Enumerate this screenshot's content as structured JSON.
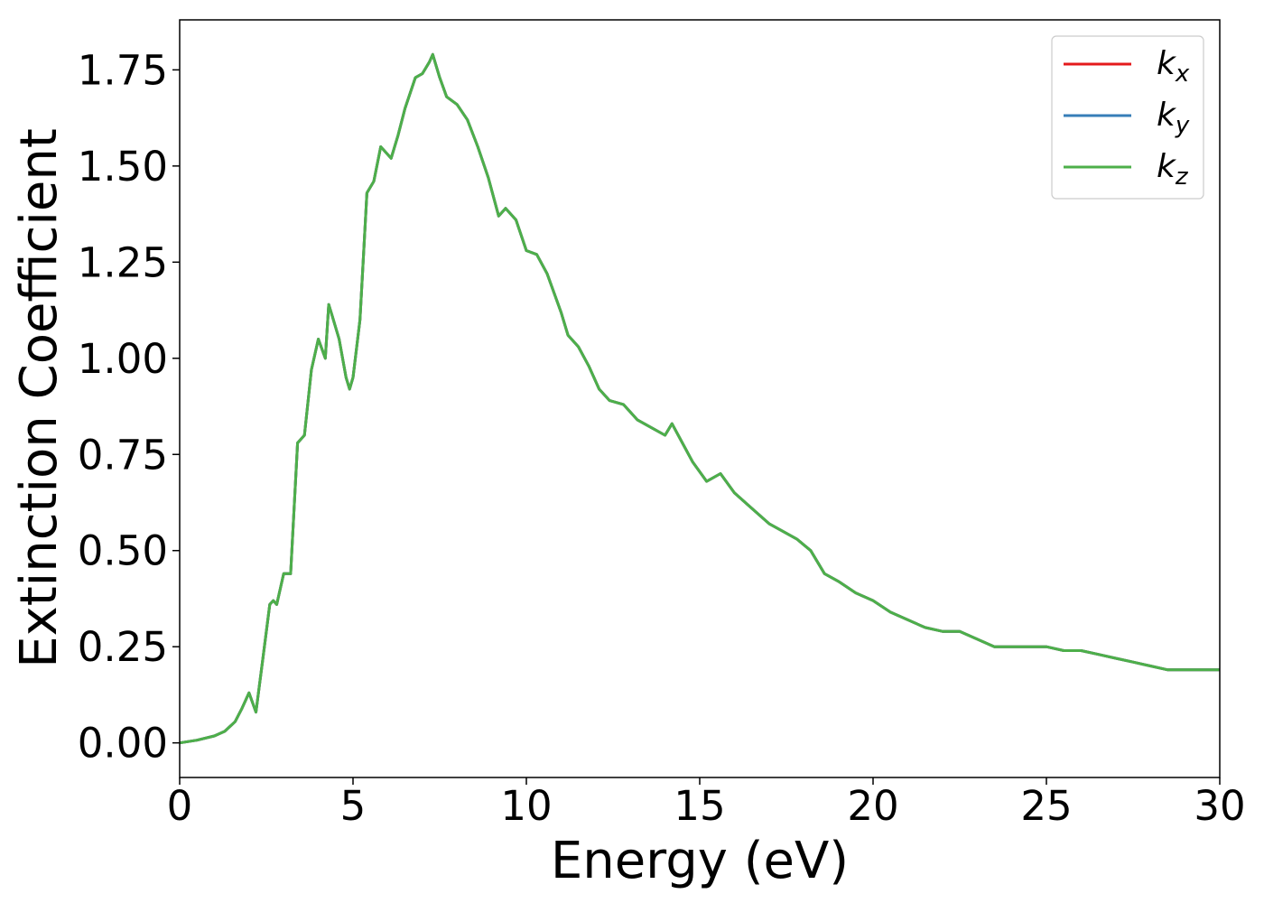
{
  "chart_data": {
    "type": "line",
    "title": "",
    "xlabel": "Energy (eV)",
    "ylabel": "Extinction Coefficient",
    "xlim": [
      0,
      30
    ],
    "ylim": [
      -0.09,
      1.88
    ],
    "x_ticks": [
      0,
      5,
      10,
      15,
      20,
      25,
      30
    ],
    "x_tick_labels": [
      "0",
      "5",
      "10",
      "15",
      "20",
      "25",
      "30"
    ],
    "y_ticks": [
      0.0,
      0.25,
      0.5,
      0.75,
      1.0,
      1.25,
      1.5,
      1.75
    ],
    "y_tick_labels": [
      "0.00",
      "0.25",
      "0.50",
      "0.75",
      "1.00",
      "1.25",
      "1.50",
      "1.75"
    ],
    "grid": false,
    "legend_position": "top-right",
    "series": [
      {
        "name": "k",
        "subscript": "x",
        "color": "#e41a1c",
        "x": [
          0,
          0.5,
          1.0,
          1.3,
          1.6,
          1.8,
          2.0,
          2.2,
          2.4,
          2.6,
          2.7,
          2.8,
          3.0,
          3.2,
          3.4,
          3.5,
          3.6,
          3.8,
          4.0,
          4.2,
          4.3,
          4.4,
          4.6,
          4.8,
          4.9,
          5.0,
          5.2,
          5.4,
          5.6,
          5.8,
          6.1,
          6.3,
          6.5,
          6.8,
          7.0,
          7.2,
          7.3,
          7.5,
          7.7,
          8.0,
          8.3,
          8.6,
          8.9,
          9.2,
          9.4,
          9.7,
          10.0,
          10.3,
          10.6,
          11.0,
          11.2,
          11.5,
          11.8,
          12.1,
          12.4,
          12.8,
          13.2,
          13.6,
          14.0,
          14.2,
          14.5,
          14.8,
          15.2,
          15.6,
          16.0,
          16.5,
          17.0,
          17.4,
          17.8,
          18.2,
          18.6,
          19.0,
          19.5,
          20.0,
          20.5,
          21.0,
          21.5,
          22.0,
          22.5,
          23.0,
          23.5,
          24.0,
          24.5,
          25.0,
          25.5,
          26.0,
          26.5,
          27.0,
          27.5,
          28.0,
          28.5,
          29.0,
          29.5,
          30.0
        ],
        "y": [
          0.0,
          0.007,
          0.018,
          0.03,
          0.055,
          0.09,
          0.13,
          0.08,
          0.22,
          0.36,
          0.37,
          0.36,
          0.44,
          0.44,
          0.78,
          0.79,
          0.8,
          0.97,
          1.05,
          1.0,
          1.14,
          1.11,
          1.05,
          0.95,
          0.92,
          0.95,
          1.1,
          1.43,
          1.46,
          1.55,
          1.52,
          1.58,
          1.65,
          1.73,
          1.74,
          1.77,
          1.79,
          1.73,
          1.68,
          1.66,
          1.62,
          1.55,
          1.47,
          1.37,
          1.39,
          1.36,
          1.28,
          1.27,
          1.22,
          1.12,
          1.06,
          1.03,
          0.98,
          0.92,
          0.89,
          0.88,
          0.84,
          0.82,
          0.8,
          0.83,
          0.78,
          0.73,
          0.68,
          0.7,
          0.65,
          0.61,
          0.57,
          0.55,
          0.53,
          0.5,
          0.44,
          0.42,
          0.39,
          0.37,
          0.34,
          0.32,
          0.3,
          0.29,
          0.29,
          0.27,
          0.25,
          0.25,
          0.25,
          0.25,
          0.24,
          0.24,
          0.23,
          0.22,
          0.21,
          0.2,
          0.19,
          0.19,
          0.19,
          0.19
        ]
      },
      {
        "name": "k",
        "subscript": "y",
        "color": "#377eb8",
        "x": [
          0,
          0.5,
          1.0,
          1.3,
          1.6,
          1.8,
          2.0,
          2.2,
          2.4,
          2.6,
          2.7,
          2.8,
          3.0,
          3.2,
          3.4,
          3.5,
          3.6,
          3.8,
          4.0,
          4.2,
          4.3,
          4.4,
          4.6,
          4.8,
          4.9,
          5.0,
          5.2,
          5.4,
          5.6,
          5.8,
          6.1,
          6.3,
          6.5,
          6.8,
          7.0,
          7.2,
          7.3,
          7.5,
          7.7,
          8.0,
          8.3,
          8.6,
          8.9,
          9.2,
          9.4,
          9.7,
          10.0,
          10.3,
          10.6,
          11.0,
          11.2,
          11.5,
          11.8,
          12.1,
          12.4,
          12.8,
          13.2,
          13.6,
          14.0,
          14.2,
          14.5,
          14.8,
          15.2,
          15.6,
          16.0,
          16.5,
          17.0,
          17.4,
          17.8,
          18.2,
          18.6,
          19.0,
          19.5,
          20.0,
          20.5,
          21.0,
          21.5,
          22.0,
          22.5,
          23.0,
          23.5,
          24.0,
          24.5,
          25.0,
          25.5,
          26.0,
          26.5,
          27.0,
          27.5,
          28.0,
          28.5,
          29.0,
          29.5,
          30.0
        ],
        "y": [
          0.0,
          0.007,
          0.018,
          0.03,
          0.055,
          0.09,
          0.13,
          0.08,
          0.22,
          0.36,
          0.37,
          0.36,
          0.44,
          0.44,
          0.78,
          0.79,
          0.8,
          0.97,
          1.05,
          1.0,
          1.14,
          1.11,
          1.05,
          0.95,
          0.92,
          0.95,
          1.1,
          1.43,
          1.46,
          1.55,
          1.52,
          1.58,
          1.65,
          1.73,
          1.74,
          1.77,
          1.79,
          1.73,
          1.68,
          1.66,
          1.62,
          1.55,
          1.47,
          1.37,
          1.39,
          1.36,
          1.28,
          1.27,
          1.22,
          1.12,
          1.06,
          1.03,
          0.98,
          0.92,
          0.89,
          0.88,
          0.84,
          0.82,
          0.8,
          0.83,
          0.78,
          0.73,
          0.68,
          0.7,
          0.65,
          0.61,
          0.57,
          0.55,
          0.53,
          0.5,
          0.44,
          0.42,
          0.39,
          0.37,
          0.34,
          0.32,
          0.3,
          0.29,
          0.29,
          0.27,
          0.25,
          0.25,
          0.25,
          0.25,
          0.24,
          0.24,
          0.23,
          0.22,
          0.21,
          0.2,
          0.19,
          0.19,
          0.19,
          0.19
        ]
      },
      {
        "name": "k",
        "subscript": "z",
        "color": "#4daf4a",
        "x": [
          0,
          0.5,
          1.0,
          1.3,
          1.6,
          1.8,
          2.0,
          2.2,
          2.4,
          2.6,
          2.7,
          2.8,
          3.0,
          3.2,
          3.4,
          3.5,
          3.6,
          3.8,
          4.0,
          4.2,
          4.3,
          4.4,
          4.6,
          4.8,
          4.9,
          5.0,
          5.2,
          5.4,
          5.6,
          5.8,
          6.1,
          6.3,
          6.5,
          6.8,
          7.0,
          7.2,
          7.3,
          7.5,
          7.7,
          8.0,
          8.3,
          8.6,
          8.9,
          9.2,
          9.4,
          9.7,
          10.0,
          10.3,
          10.6,
          11.0,
          11.2,
          11.5,
          11.8,
          12.1,
          12.4,
          12.8,
          13.2,
          13.6,
          14.0,
          14.2,
          14.5,
          14.8,
          15.2,
          15.6,
          16.0,
          16.5,
          17.0,
          17.4,
          17.8,
          18.2,
          18.6,
          19.0,
          19.5,
          20.0,
          20.5,
          21.0,
          21.5,
          22.0,
          22.5,
          23.0,
          23.5,
          24.0,
          24.5,
          25.0,
          25.5,
          26.0,
          26.5,
          27.0,
          27.5,
          28.0,
          28.5,
          29.0,
          29.5,
          30.0
        ],
        "y": [
          0.0,
          0.007,
          0.018,
          0.03,
          0.055,
          0.09,
          0.13,
          0.08,
          0.22,
          0.36,
          0.37,
          0.36,
          0.44,
          0.44,
          0.78,
          0.79,
          0.8,
          0.97,
          1.05,
          1.0,
          1.14,
          1.11,
          1.05,
          0.95,
          0.92,
          0.95,
          1.1,
          1.43,
          1.46,
          1.55,
          1.52,
          1.58,
          1.65,
          1.73,
          1.74,
          1.77,
          1.79,
          1.73,
          1.68,
          1.66,
          1.62,
          1.55,
          1.47,
          1.37,
          1.39,
          1.36,
          1.28,
          1.27,
          1.22,
          1.12,
          1.06,
          1.03,
          0.98,
          0.92,
          0.89,
          0.88,
          0.84,
          0.82,
          0.8,
          0.83,
          0.78,
          0.73,
          0.68,
          0.7,
          0.65,
          0.61,
          0.57,
          0.55,
          0.53,
          0.5,
          0.44,
          0.42,
          0.39,
          0.37,
          0.34,
          0.32,
          0.3,
          0.29,
          0.29,
          0.27,
          0.25,
          0.25,
          0.25,
          0.25,
          0.24,
          0.24,
          0.23,
          0.22,
          0.21,
          0.2,
          0.19,
          0.19,
          0.19,
          0.19
        ]
      }
    ]
  }
}
